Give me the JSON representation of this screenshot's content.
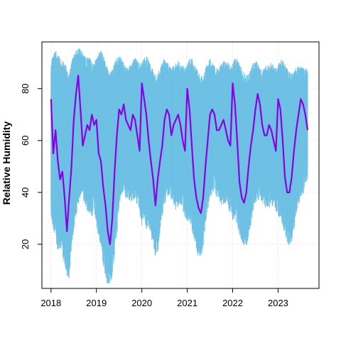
{
  "chart_data": {
    "type": "line",
    "title": "",
    "xlabel": "",
    "ylabel": "Relative Humidity",
    "xlim": [
      2017.8,
      2023.9
    ],
    "ylim": [
      3,
      98
    ],
    "grid": true,
    "x_ticks": [
      2018,
      2019,
      2020,
      2021,
      2022,
      2023
    ],
    "x_tick_labels": [
      "2018",
      "2019",
      "2020",
      "2021",
      "2022",
      "2023"
    ],
    "y_ticks": [
      20,
      40,
      60,
      80
    ],
    "y_tick_labels": [
      "20",
      "40",
      "60",
      "80"
    ],
    "colors": {
      "range": "#6ec1e4",
      "mean": "#8a00e6"
    },
    "series": [
      {
        "role": "range",
        "x": [
          2018.0,
          2018.05,
          2018.1,
          2018.15,
          2018.2,
          2018.25,
          2018.3,
          2018.35,
          2018.4,
          2018.45,
          2018.5,
          2018.55,
          2018.6,
          2018.65,
          2018.7,
          2018.75,
          2018.8,
          2018.85,
          2018.9,
          2018.95,
          2019.0,
          2019.05,
          2019.1,
          2019.15,
          2019.2,
          2019.25,
          2019.3,
          2019.35,
          2019.4,
          2019.45,
          2019.5,
          2019.55,
          2019.6,
          2019.65,
          2019.7,
          2019.75,
          2019.8,
          2019.85,
          2019.9,
          2019.95,
          2020.0,
          2020.05,
          2020.1,
          2020.15,
          2020.2,
          2020.25,
          2020.3,
          2020.35,
          2020.4,
          2020.45,
          2020.5,
          2020.55,
          2020.6,
          2020.65,
          2020.7,
          2020.75,
          2020.8,
          2020.85,
          2020.9,
          2020.95,
          2021.0,
          2021.05,
          2021.1,
          2021.15,
          2021.2,
          2021.25,
          2021.3,
          2021.35,
          2021.4,
          2021.45,
          2021.5,
          2021.55,
          2021.6,
          2021.65,
          2021.7,
          2021.75,
          2021.8,
          2021.85,
          2021.9,
          2021.95,
          2022.0,
          2022.05,
          2022.1,
          2022.15,
          2022.2,
          2022.25,
          2022.3,
          2022.35,
          2022.4,
          2022.45,
          2022.5,
          2022.55,
          2022.6,
          2022.65,
          2022.7,
          2022.75,
          2022.8,
          2022.85,
          2022.9,
          2022.95,
          2023.0,
          2023.05,
          2023.1,
          2023.15,
          2023.2,
          2023.25,
          2023.3,
          2023.35,
          2023.4,
          2023.45,
          2023.5,
          2023.55,
          2023.6,
          2023.65
        ],
        "low": [
          33,
          28,
          26,
          20,
          22,
          18,
          15,
          10,
          9,
          22,
          28,
          34,
          38,
          42,
          40,
          38,
          35,
          34,
          33,
          36,
          30,
          25,
          22,
          15,
          10,
          6,
          7,
          10,
          18,
          26,
          38,
          42,
          44,
          40,
          40,
          38,
          39,
          40,
          38,
          35,
          30,
          33,
          28,
          30,
          26,
          22,
          18,
          20,
          28,
          34,
          38,
          40,
          42,
          40,
          38,
          36,
          37,
          38,
          36,
          33,
          30,
          32,
          28,
          25,
          20,
          18,
          18,
          22,
          30,
          36,
          40,
          42,
          43,
          41,
          40,
          38,
          38,
          39,
          37,
          34,
          32,
          33,
          30,
          26,
          24,
          22,
          22,
          24,
          30,
          36,
          38,
          40,
          40,
          38,
          37,
          36,
          36,
          38,
          37,
          35,
          33,
          34,
          30,
          26,
          24,
          22,
          24,
          28,
          34,
          38,
          40,
          42,
          46,
          48
        ],
        "high": [
          90,
          94,
          95,
          93,
          92,
          91,
          90,
          88,
          86,
          90,
          94,
          95,
          96,
          95,
          94,
          93,
          92,
          92,
          91,
          90,
          92,
          94,
          95,
          93,
          90,
          88,
          86,
          88,
          90,
          92,
          93,
          92,
          90,
          88,
          89,
          90,
          91,
          92,
          91,
          90,
          90,
          92,
          93,
          91,
          89,
          87,
          85,
          86,
          88,
          90,
          92,
          91,
          89,
          88,
          89,
          90,
          91,
          90,
          89,
          88,
          90,
          92,
          92,
          90,
          88,
          86,
          85,
          86,
          88,
          90,
          92,
          91,
          89,
          88,
          89,
          90,
          91,
          91,
          90,
          89,
          90,
          92,
          92,
          90,
          88,
          86,
          85,
          86,
          88,
          90,
          91,
          90,
          88,
          87,
          88,
          89,
          90,
          90,
          89,
          88,
          89,
          91,
          92,
          90,
          88,
          87,
          86,
          87,
          88,
          89,
          89,
          88,
          88,
          88
        ]
      },
      {
        "role": "mean",
        "x": [
          2018.0,
          2018.05,
          2018.1,
          2018.15,
          2018.2,
          2018.25,
          2018.3,
          2018.35,
          2018.4,
          2018.45,
          2018.5,
          2018.55,
          2018.6,
          2018.65,
          2018.7,
          2018.75,
          2018.8,
          2018.85,
          2018.9,
          2018.95,
          2019.0,
          2019.05,
          2019.1,
          2019.15,
          2019.2,
          2019.25,
          2019.3,
          2019.35,
          2019.4,
          2019.45,
          2019.5,
          2019.55,
          2019.6,
          2019.65,
          2019.7,
          2019.75,
          2019.8,
          2019.85,
          2019.9,
          2019.95,
          2020.0,
          2020.05,
          2020.1,
          2020.15,
          2020.2,
          2020.25,
          2020.3,
          2020.35,
          2020.4,
          2020.45,
          2020.5,
          2020.55,
          2020.6,
          2020.65,
          2020.7,
          2020.75,
          2020.8,
          2020.85,
          2020.9,
          2020.95,
          2021.0,
          2021.05,
          2021.1,
          2021.15,
          2021.2,
          2021.25,
          2021.3,
          2021.35,
          2021.4,
          2021.45,
          2021.5,
          2021.55,
          2021.6,
          2021.65,
          2021.7,
          2021.75,
          2021.8,
          2021.85,
          2021.9,
          2021.95,
          2022.0,
          2022.05,
          2022.1,
          2022.15,
          2022.2,
          2022.25,
          2022.3,
          2022.35,
          2022.4,
          2022.45,
          2022.5,
          2022.55,
          2022.6,
          2022.65,
          2022.7,
          2022.75,
          2022.8,
          2022.85,
          2022.9,
          2022.95,
          2023.0,
          2023.05,
          2023.1,
          2023.15,
          2023.2,
          2023.25,
          2023.3,
          2023.35,
          2023.4,
          2023.45,
          2023.5,
          2023.55,
          2023.6,
          2023.65
        ],
        "y": [
          76,
          55,
          64,
          52,
          45,
          48,
          38,
          25,
          38,
          50,
          68,
          78,
          85,
          72,
          58,
          62,
          66,
          64,
          70,
          66,
          68,
          55,
          52,
          42,
          35,
          25,
          20,
          30,
          48,
          62,
          72,
          70,
          74,
          68,
          66,
          64,
          70,
          68,
          62,
          56,
          82,
          76,
          70,
          60,
          52,
          45,
          35,
          45,
          52,
          58,
          68,
          72,
          70,
          62,
          66,
          68,
          70,
          66,
          60,
          56,
          80,
          72,
          58,
          45,
          38,
          34,
          32,
          38,
          50,
          60,
          70,
          72,
          70,
          64,
          64,
          66,
          68,
          64,
          60,
          58,
          82,
          74,
          60,
          44,
          38,
          36,
          40,
          50,
          58,
          64,
          72,
          78,
          74,
          66,
          62,
          62,
          66,
          64,
          60,
          56,
          76,
          72,
          60,
          46,
          40,
          40,
          46,
          56,
          64,
          70,
          76,
          74,
          70,
          64
        ]
      }
    ]
  }
}
